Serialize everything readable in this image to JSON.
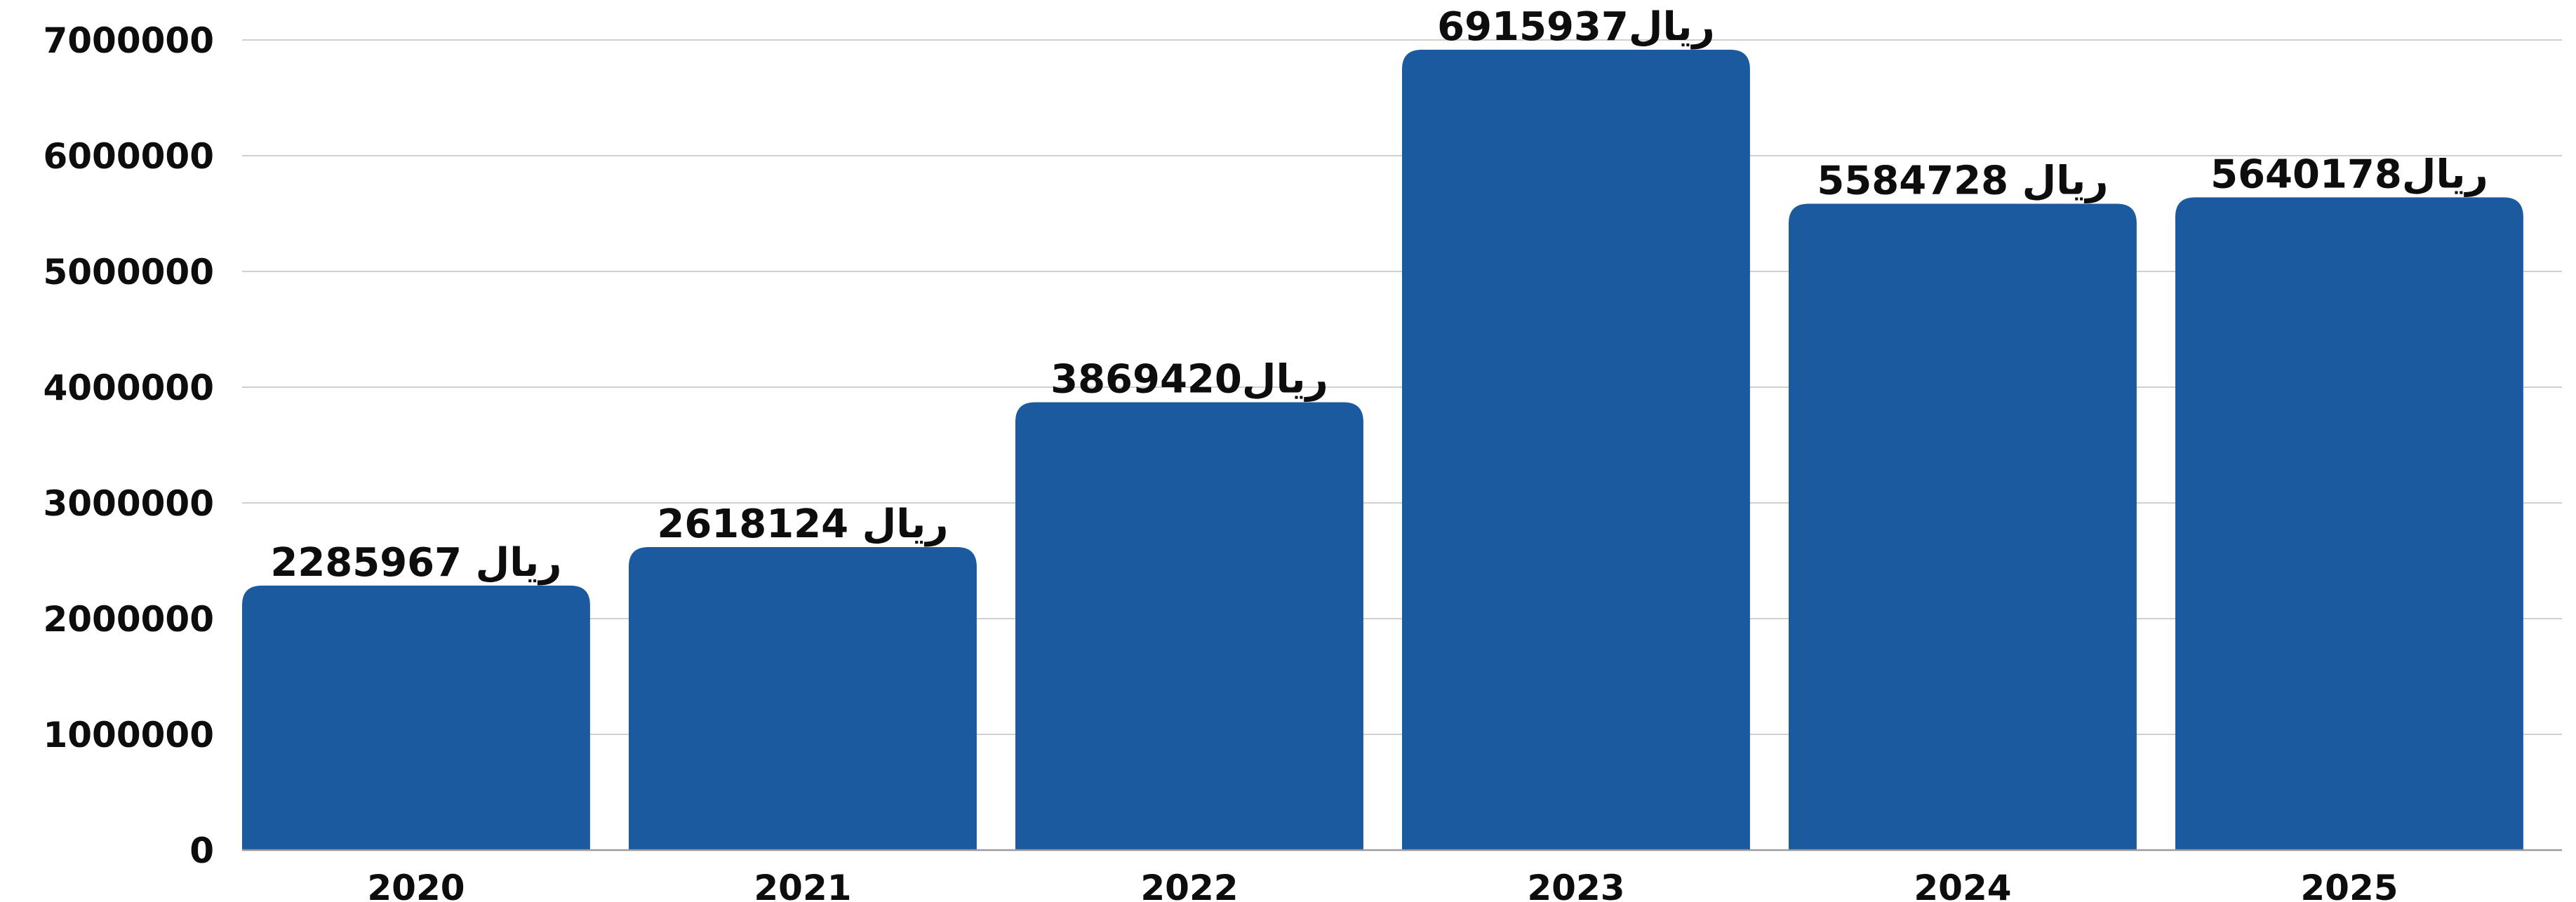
{
  "chart_data": {
    "type": "bar",
    "title": "",
    "xlabel": "",
    "ylabel": "",
    "categories": [
      "2020",
      "2021",
      "2022",
      "2023",
      "2024",
      "2025"
    ],
    "values": [
      2285967,
      2618124,
      3869420,
      6915937,
      5584728,
      5640178
    ],
    "data_labels": [
      "ريال 2285967",
      "ريال 2618124",
      "ريال3869420",
      "ريال6915937",
      "ريال 5584728",
      "ريال5640178"
    ],
    "currency_label": "ريال",
    "ylim": [
      0,
      7000000
    ],
    "yticks": [
      0,
      1000000,
      2000000,
      3000000,
      4000000,
      5000000,
      6000000,
      7000000
    ],
    "grid": true,
    "legend": "none",
    "colors": {
      "bar": "#1c5aa0",
      "grid": "#cfcfd4",
      "text": "#0d0d0d"
    }
  }
}
